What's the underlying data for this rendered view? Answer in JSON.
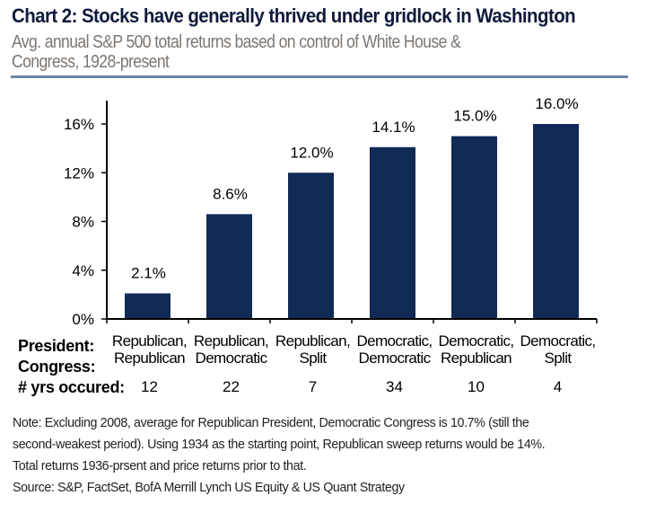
{
  "header": {
    "title": "Chart 2: Stocks have generally thrived under gridlock in Washington",
    "subtitle_line1": "Avg. annual S&P 500 total returns based on control of White House &",
    "subtitle_line2": "Congress, 1928-present"
  },
  "colors": {
    "bar": "#112a56",
    "title": "#0f1a3c",
    "subtitle": "#7d7570",
    "rule": "#6f86a8"
  },
  "chart_data": {
    "type": "bar",
    "title": "Chart 2: Stocks have generally thrived under gridlock in Washington",
    "subtitle": "Avg. annual S&P 500 total returns based on control of White House & Congress, 1928-present",
    "xlabel": "",
    "ylabel": "",
    "ylim": [
      0,
      16
    ],
    "yticks": [
      0,
      4,
      8,
      12,
      16
    ],
    "ytick_labels": [
      "0%",
      "4%",
      "8%",
      "12%",
      "16%"
    ],
    "grid": false,
    "legend": "none",
    "categories": [
      {
        "president": "Republican,",
        "congress": "Republican"
      },
      {
        "president": "Republican,",
        "congress": "Democratic"
      },
      {
        "president": "Republican,",
        "congress": "Split"
      },
      {
        "president": "Democratic,",
        "congress": "Democratic"
      },
      {
        "president": "Democratic,",
        "congress": "Republican"
      },
      {
        "president": "Democratic,",
        "congress": "Split"
      }
    ],
    "values": [
      2.1,
      8.6,
      12.0,
      14.1,
      15.0,
      16.0
    ],
    "data_labels": [
      "2.1%",
      "8.6%",
      "12.0%",
      "14.1%",
      "15.0%",
      "16.0%"
    ],
    "years_occurred": [
      "12",
      "22",
      "7",
      "34",
      "10",
      "4"
    ]
  },
  "row_labels": {
    "president": "President:",
    "congress": "Congress:",
    "years": "# yrs occured:"
  },
  "notes": {
    "line1": "Note: Excluding  2008, average for Republican President, Democratic Congress  is 10.7%  (still the",
    "line2": "second-weakest  period). Using  1934 as the starting point, Republican  sweep returns would be 14%.",
    "line3": "Total returns 1936-prsent  and price returns prior to that.",
    "source": "Source:  S&P,  FactSet, BofA Merrill Lynch US Equity & US Quant  Strategy"
  }
}
